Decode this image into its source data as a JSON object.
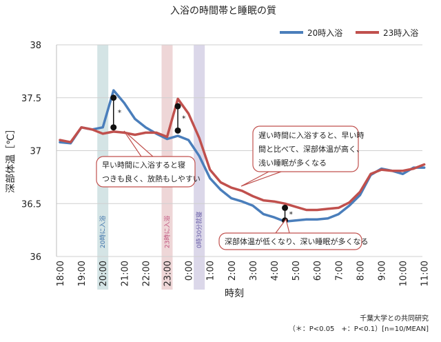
{
  "chart_data": {
    "type": "line",
    "title": "入浴の時間帯と睡眠の質",
    "xlabel": "時刻",
    "ylabel": "深部体温［℃］",
    "ylim": [
      36,
      38
    ],
    "yticks": [
      "36",
      "36.5",
      "37",
      "37.5",
      "38"
    ],
    "x_ticks": [
      "18:00",
      "19:00",
      "20:00",
      "21:00",
      "22:00",
      "23:00",
      "0:00",
      "1:00",
      "2:00",
      "3:00",
      "4:00",
      "5:00",
      "6:00",
      "7:00",
      "8:00",
      "9:00",
      "10:00",
      "11:00"
    ],
    "grid": true,
    "legend_position": "top-right",
    "series": [
      {
        "name": "20時入浴",
        "color": "#4a7ebb",
        "points": [
          [
            0,
            37.08
          ],
          [
            0.5,
            37.07
          ],
          [
            1,
            37.22
          ],
          [
            1.5,
            37.2
          ],
          [
            2,
            37.22
          ],
          [
            2.5,
            37.57
          ],
          [
            3,
            37.45
          ],
          [
            3.5,
            37.3
          ],
          [
            4,
            37.22
          ],
          [
            4.5,
            37.16
          ],
          [
            5,
            37.11
          ],
          [
            5.5,
            37.14
          ],
          [
            6,
            37.1
          ],
          [
            6.5,
            36.95
          ],
          [
            7,
            36.74
          ],
          [
            7.5,
            36.63
          ],
          [
            8,
            36.55
          ],
          [
            8.5,
            36.52
          ],
          [
            9,
            36.48
          ],
          [
            9.5,
            36.4
          ],
          [
            10,
            36.37
          ],
          [
            10.5,
            36.33
          ],
          [
            11,
            36.34
          ],
          [
            11.5,
            36.35
          ],
          [
            12,
            36.35
          ],
          [
            12.5,
            36.36
          ],
          [
            13,
            36.4
          ],
          [
            13.5,
            36.48
          ],
          [
            14,
            36.58
          ],
          [
            14.5,
            36.77
          ],
          [
            15,
            36.83
          ],
          [
            15.5,
            36.81
          ],
          [
            16,
            36.78
          ],
          [
            16.5,
            36.84
          ],
          [
            17,
            36.84
          ]
        ]
      },
      {
        "name": "23時入浴",
        "color": "#c0504d",
        "points": [
          [
            0,
            37.1
          ],
          [
            0.5,
            37.08
          ],
          [
            1,
            37.22
          ],
          [
            1.5,
            37.2
          ],
          [
            2,
            37.16
          ],
          [
            2.5,
            37.18
          ],
          [
            3,
            37.17
          ],
          [
            3.5,
            37.15
          ],
          [
            4,
            37.17
          ],
          [
            4.5,
            37.17
          ],
          [
            5,
            37.13
          ],
          [
            5.5,
            37.49
          ],
          [
            6,
            37.35
          ],
          [
            6.5,
            37.12
          ],
          [
            7,
            36.82
          ],
          [
            7.5,
            36.7
          ],
          [
            8,
            36.65
          ],
          [
            8.5,
            36.62
          ],
          [
            9,
            36.57
          ],
          [
            9.5,
            36.53
          ],
          [
            10,
            36.52
          ],
          [
            10.5,
            36.5
          ],
          [
            11,
            36.47
          ],
          [
            11.5,
            36.44
          ],
          [
            12,
            36.44
          ],
          [
            12.5,
            36.45
          ],
          [
            13,
            36.46
          ],
          [
            13.5,
            36.51
          ],
          [
            14,
            36.61
          ],
          [
            14.5,
            36.78
          ],
          [
            15,
            36.82
          ],
          [
            15.5,
            36.81
          ],
          [
            16,
            36.81
          ],
          [
            16.5,
            36.83
          ],
          [
            17,
            36.87
          ]
        ]
      }
    ],
    "bath_bands": [
      {
        "x": 2,
        "label": "20時に入浴",
        "color": "#9fc3c6",
        "text_color": "#3a6fa8"
      },
      {
        "x": 5,
        "label": "23時に入浴",
        "color": "#d9a3a6",
        "text_color": "#c0507d"
      },
      {
        "x": 6.5,
        "label": "0時30分就寝",
        "color": "#b0a6cf",
        "text_color": "#6a5fa8"
      }
    ],
    "significance": [
      {
        "x": 2.5,
        "y_top": 37.5,
        "y_bottom": 37.22,
        "mark": "*"
      },
      {
        "x": 5.5,
        "y_top": 37.42,
        "y_bottom": 37.19,
        "mark": "*"
      },
      {
        "x": 10.5,
        "y_top": 36.46,
        "y_bottom": 36.34,
        "mark": "*"
      }
    ],
    "callouts": [
      {
        "lines": [
          "早い時間に入浴すると寝",
          "つきも良く、放熱もしやすい"
        ]
      },
      {
        "lines": [
          "遅い時間に入浴すると、早い時",
          "間と比べて、深部体温が高く、",
          "浅い睡眠が多くなる"
        ]
      },
      {
        "lines": [
          "深部体温が低くなり、深い睡眠が多くなる"
        ]
      }
    ],
    "footnote": {
      "line1": "千葉大学との共同研究",
      "line2": "（＊：P<0.05　+：P<0.1）[n=10/MEAN]"
    }
  }
}
